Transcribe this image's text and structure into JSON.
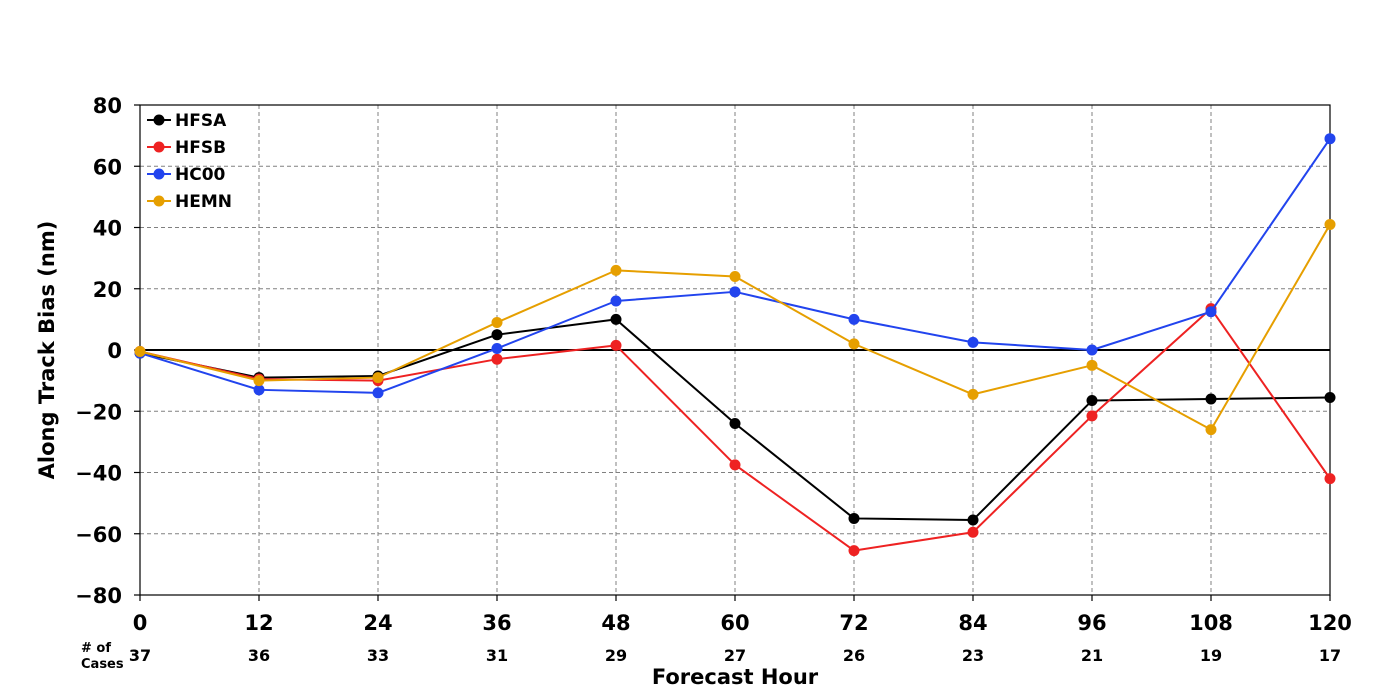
{
  "chart_data": {
    "type": "line",
    "xlabel": "Forecast Hour",
    "ylabel": "Along Track Bias (nm)",
    "x": [
      0,
      12,
      24,
      36,
      48,
      60,
      72,
      84,
      96,
      108,
      120
    ],
    "xlim": [
      0,
      120
    ],
    "ylim": [
      -80,
      80
    ],
    "yticks": [
      80,
      60,
      40,
      20,
      0,
      -20,
      -40,
      -60,
      -80
    ],
    "ytick_labels": [
      "80",
      "60",
      "40",
      "20",
      "0",
      "−20",
      "−40",
      "−60",
      "−80"
    ],
    "xticks": [
      0,
      12,
      24,
      36,
      48,
      60,
      72,
      84,
      96,
      108,
      120
    ],
    "xtick_labels": [
      "0",
      "12",
      "24",
      "36",
      "48",
      "60",
      "72",
      "84",
      "96",
      "108",
      "120"
    ],
    "grid": true,
    "legend_position": "top-left",
    "series": [
      {
        "name": "HFSA",
        "color": "#000000",
        "values": [
          -1,
          -9,
          -8.5,
          5,
          10,
          -24,
          -55,
          -55.5,
          -16.5,
          -16,
          -15.5
        ]
      },
      {
        "name": "HFSB",
        "color": "#ee2222",
        "values": [
          -0.5,
          -9.5,
          -10,
          -3,
          1.5,
          -37.5,
          -65.5,
          -59.5,
          -21.5,
          13.5,
          -42
        ]
      },
      {
        "name": "HC00",
        "color": "#2244ee",
        "values": [
          -1,
          -13,
          -14,
          0.5,
          16,
          19,
          10,
          2.5,
          0,
          12.5,
          69
        ]
      },
      {
        "name": "HEMN",
        "color": "#e69f00",
        "values": [
          -0.5,
          -10,
          -9,
          9,
          26,
          24,
          2,
          -14.5,
          -5,
          -26,
          41
        ]
      }
    ],
    "cases": {
      "label_line1": "# of",
      "label_line2": "Cases",
      "values": [
        "37",
        "36",
        "33",
        "31",
        "29",
        "27",
        "26",
        "23",
        "21",
        "19",
        "17"
      ]
    }
  }
}
